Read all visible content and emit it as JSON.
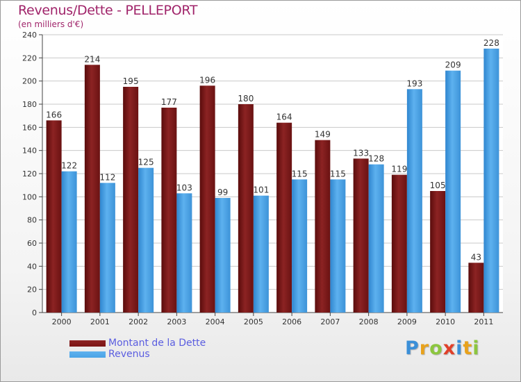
{
  "chart_data": {
    "type": "bar",
    "title": "Revenus/Dette - PELLEPORT",
    "subtitle": "(en milliers d'€)",
    "categories": [
      "2000",
      "2001",
      "2002",
      "2003",
      "2004",
      "2005",
      "2006",
      "2007",
      "2008",
      "2009",
      "2010",
      "2011"
    ],
    "series": [
      {
        "name": "Montant de la Dette",
        "color": "#7b1515",
        "values": [
          166,
          214,
          195,
          177,
          196,
          180,
          164,
          149,
          133,
          119,
          105,
          43
        ]
      },
      {
        "name": "Revenus",
        "color": "#4aa3e6",
        "values": [
          122,
          112,
          125,
          103,
          99,
          101,
          115,
          115,
          128,
          193,
          209,
          228
        ]
      }
    ],
    "ylim": [
      0,
      240
    ],
    "yticks": [
      0,
      20,
      40,
      60,
      80,
      100,
      120,
      140,
      160,
      180,
      200,
      220,
      240
    ],
    "grid": true,
    "legend_position": "bottom-left"
  },
  "branding": {
    "logo_letters": [
      {
        "ch": "P",
        "color": "#3a8fd8"
      },
      {
        "ch": "r",
        "color": "#e8a21c"
      },
      {
        "ch": "o",
        "color": "#8cc63f"
      },
      {
        "ch": "x",
        "color": "#e0402a"
      },
      {
        "ch": "i",
        "color": "#3a8fd8"
      },
      {
        "ch": "t",
        "color": "#e8a21c"
      },
      {
        "ch": "i",
        "color": "#8cc63f"
      }
    ]
  }
}
